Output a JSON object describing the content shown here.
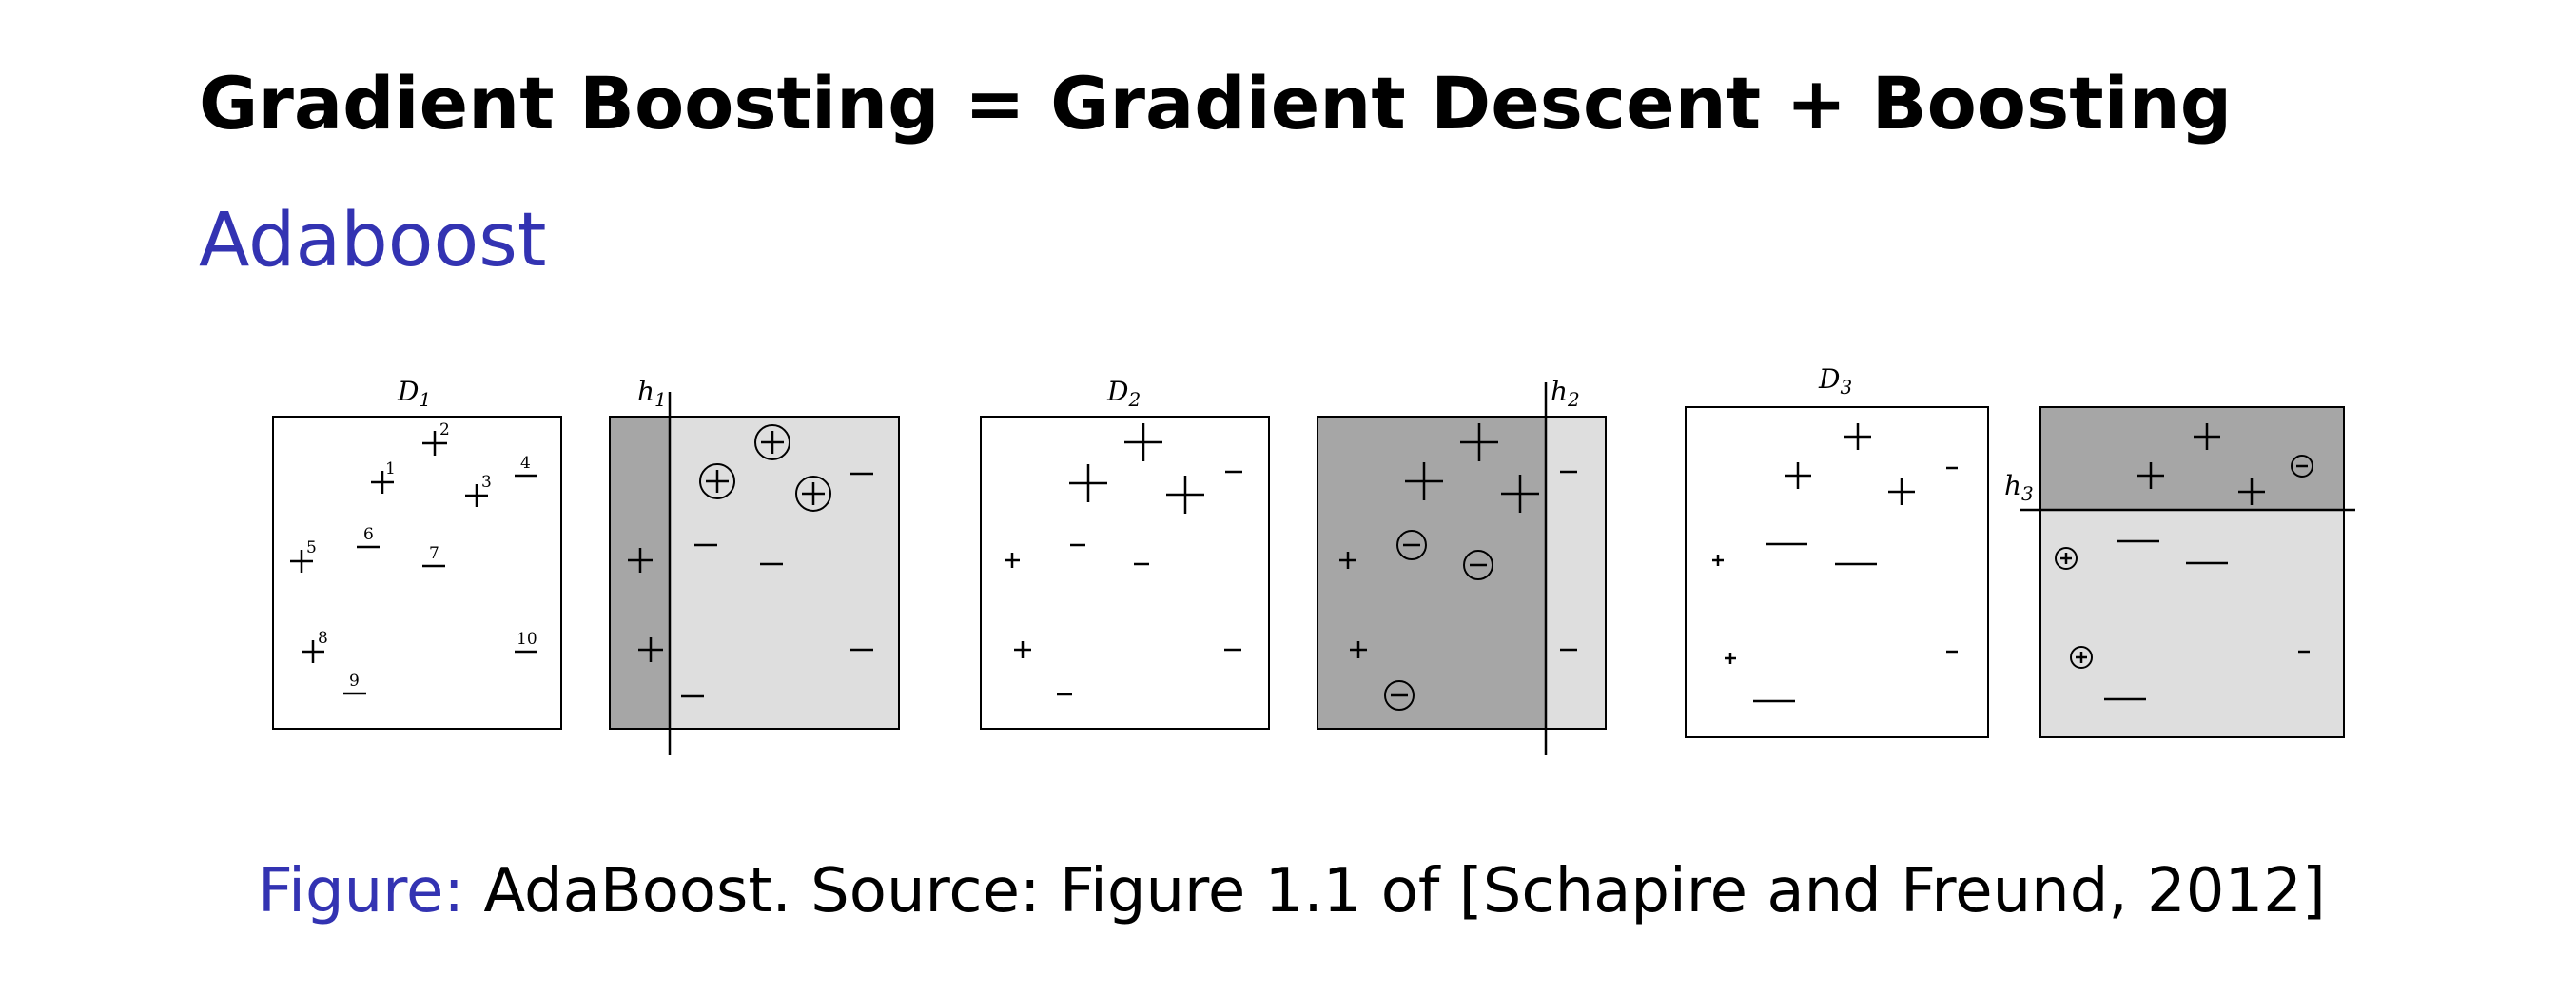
{
  "slide": {
    "title": "Gradient Boosting = Gradient Descent + Boosting",
    "section": "Adaboost"
  },
  "figure": {
    "panels": {
      "d1": {
        "label": "D",
        "sub": "1"
      },
      "h1": {
        "label": "h",
        "sub": "1"
      },
      "d2": {
        "label": "D",
        "sub": "2"
      },
      "h2": {
        "label": "h",
        "sub": "2"
      },
      "d3": {
        "label": "D",
        "sub": "3"
      },
      "h3": {
        "label": "h",
        "sub": "3"
      }
    },
    "point_numbers": [
      "1",
      "2",
      "3",
      "4",
      "5",
      "6",
      "7",
      "8",
      "9",
      "10"
    ]
  },
  "caption": {
    "label": "Figure:",
    "text": " AdaBoost. Source: Figure 1.1 of [Schapire and Freund, 2012]"
  },
  "colors": {
    "accent": "#3333b2",
    "dark_region": "#a6a6a6",
    "light_region": "#dedede"
  }
}
